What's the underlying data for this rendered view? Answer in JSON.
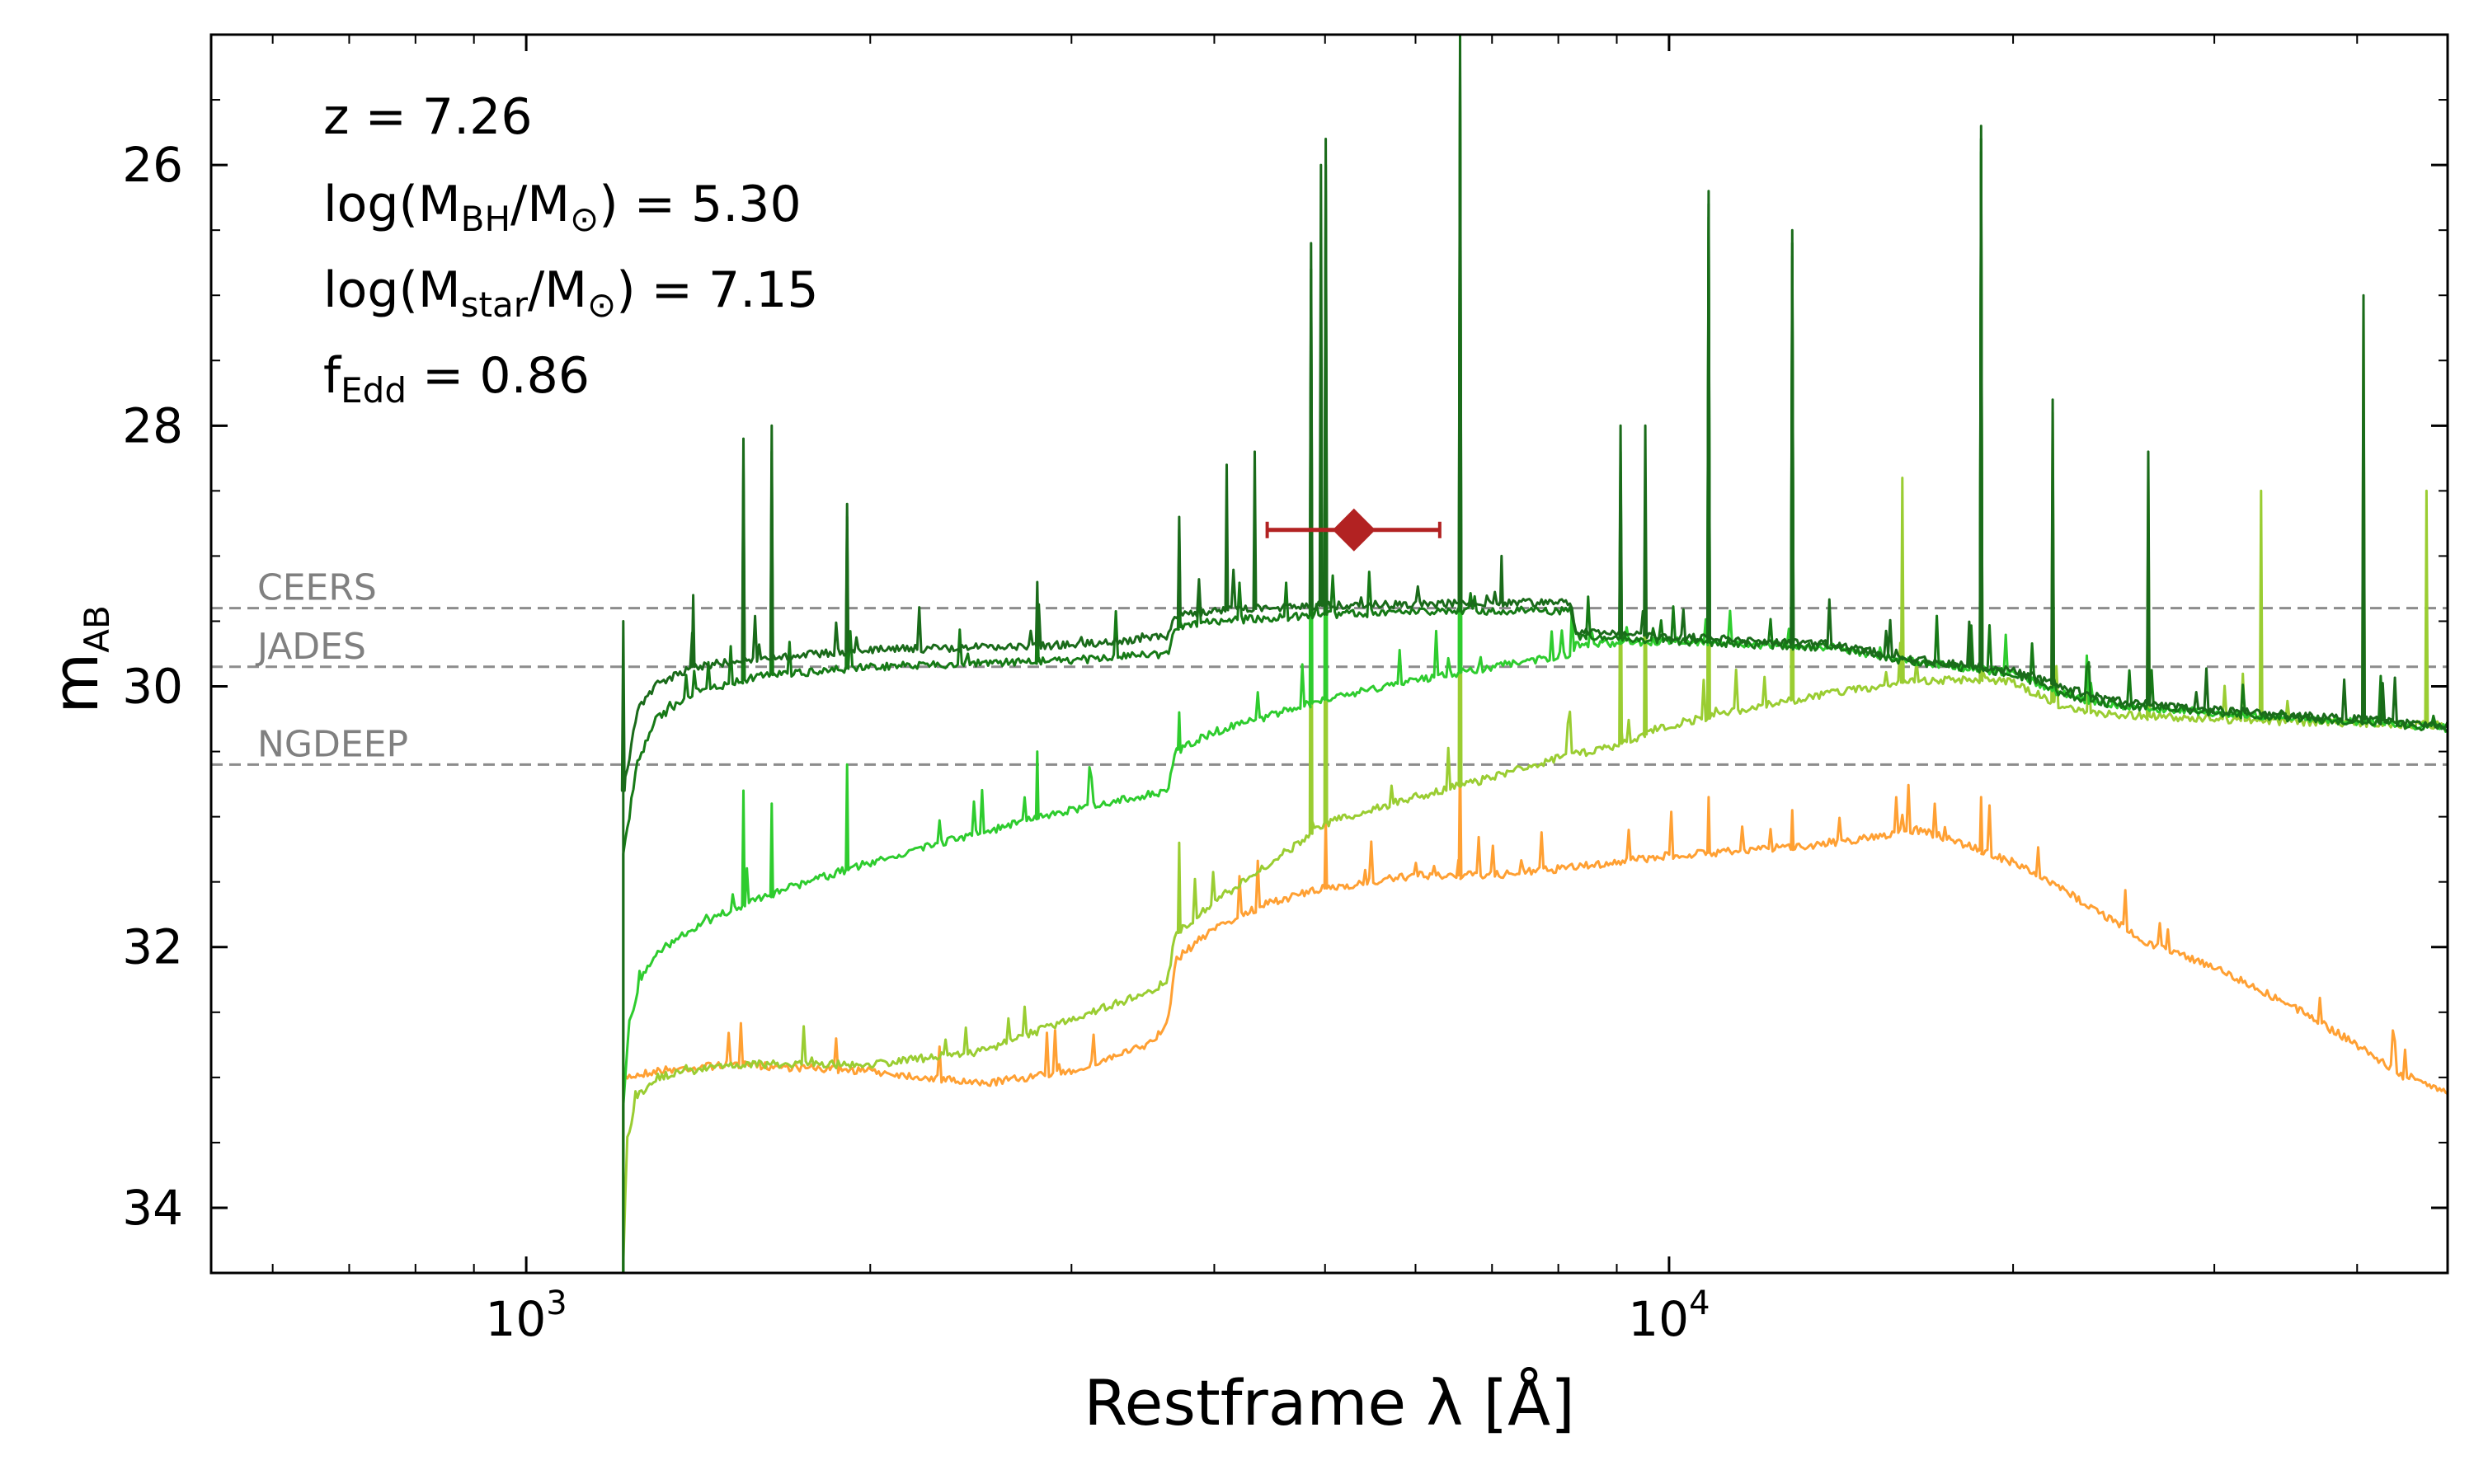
{
  "chart_data": {
    "type": "line",
    "title": "",
    "xlabel": "Restframe λ [Å]",
    "ylabel": "m",
    "ylabel_sub": "AB",
    "xscale": "log",
    "xlim": [
      530,
      48000
    ],
    "ylim": [
      34.5,
      25.0
    ],
    "y_inverted": true,
    "grid": false,
    "x_major_ticks": [
      {
        "value": 1000,
        "base": "10",
        "exp": "3"
      },
      {
        "value": 10000,
        "base": "10",
        "exp": "4"
      }
    ],
    "y_ticks": [
      26,
      28,
      30,
      32,
      34
    ],
    "y_tick_labels": [
      "26",
      "28",
      "30",
      "32",
      "34"
    ],
    "annotations": {
      "z": {
        "text": "z = 7.26"
      },
      "mbh": {
        "pre": "log(M",
        "sub1": "BH",
        "mid": "/M",
        "sub2": "⊙",
        "post": ") = 5.30"
      },
      "mstar": {
        "pre": "log(M",
        "sub1": "star",
        "mid": "/M",
        "sub2": "⊙",
        "post": ") = 7.15"
      },
      "fedd": {
        "pre": "f",
        "sub1": "Edd",
        "post": " = 0.86"
      }
    },
    "survey_limits": [
      {
        "name": "CEERS",
        "mag": 29.4,
        "color": "#8c8c8c"
      },
      {
        "name": "JADES",
        "mag": 29.85,
        "color": "#8c8c8c"
      },
      {
        "name": "NGDEEP",
        "mag": 30.6,
        "color": "#8c8c8c"
      }
    ],
    "observed_point": {
      "x": 5300,
      "y": 28.8,
      "x_err_low": 4450,
      "x_err_high": 6300,
      "color": "#b22222",
      "marker": "diamond"
    },
    "series": [
      {
        "name": "total-dark",
        "color": "#1a6b1a",
        "points": [
          [
            1216,
            30.8
          ],
          [
            1250,
            30.2
          ],
          [
            1300,
            29.98
          ],
          [
            1400,
            29.85
          ],
          [
            1600,
            29.78
          ],
          [
            2000,
            29.72
          ],
          [
            2500,
            29.7
          ],
          [
            3000,
            29.68
          ],
          [
            3640,
            29.62
          ],
          [
            3700,
            29.45
          ],
          [
            4000,
            29.42
          ],
          [
            5000,
            29.38
          ],
          [
            6000,
            29.37
          ],
          [
            7000,
            29.36
          ],
          [
            8200,
            29.36
          ],
          [
            8300,
            29.58
          ],
          [
            9000,
            29.6
          ],
          [
            10000,
            29.62
          ],
          [
            12000,
            29.65
          ],
          [
            14000,
            29.68
          ],
          [
            16000,
            29.78
          ],
          [
            20000,
            29.88
          ],
          [
            22000,
            30.0
          ],
          [
            23000,
            30.05
          ],
          [
            25000,
            30.12
          ],
          [
            30000,
            30.18
          ],
          [
            35000,
            30.22
          ],
          [
            40000,
            30.25
          ],
          [
            48000,
            30.3
          ]
        ],
        "lines": [
          [
            1216,
            29.5
          ],
          [
            1400,
            29.3
          ],
          [
            1549,
            28.1
          ],
          [
            1640,
            28.0
          ],
          [
            1909,
            28.6
          ],
          [
            2800,
            29.2
          ],
          [
            3727,
            28.7
          ],
          [
            4101,
            28.3
          ],
          [
            4340,
            28.2
          ],
          [
            4861,
            26.6
          ],
          [
            4959,
            26.0
          ],
          [
            5007,
            25.8
          ],
          [
            6563,
            25.0
          ],
          [
            7136,
            29.0
          ],
          [
            9069,
            28.0
          ],
          [
            9532,
            28.0
          ],
          [
            10830,
            26.2
          ],
          [
            12818,
            26.5
          ],
          [
            18751,
            25.7
          ],
          [
            21661,
            27.8
          ],
          [
            26260,
            28.2
          ],
          [
            40520,
            27.0
          ]
        ]
      },
      {
        "name": "total-mid",
        "color": "#167a16",
        "points": [
          [
            1216,
            31.3
          ],
          [
            1250,
            30.6
          ],
          [
            1300,
            30.25
          ],
          [
            1400,
            30.05
          ],
          [
            1600,
            29.92
          ],
          [
            2000,
            29.85
          ],
          [
            2500,
            29.82
          ],
          [
            3000,
            29.8
          ],
          [
            3640,
            29.75
          ],
          [
            3700,
            29.55
          ],
          [
            4000,
            29.5
          ],
          [
            5000,
            29.45
          ],
          [
            6000,
            29.43
          ],
          [
            7000,
            29.42
          ],
          [
            8200,
            29.42
          ],
          [
            8300,
            29.62
          ],
          [
            9000,
            29.63
          ],
          [
            10000,
            29.65
          ],
          [
            12000,
            29.68
          ],
          [
            14000,
            29.7
          ],
          [
            16000,
            29.8
          ],
          [
            20000,
            29.9
          ],
          [
            22000,
            30.05
          ],
          [
            23000,
            30.1
          ],
          [
            25000,
            30.15
          ],
          [
            30000,
            30.2
          ],
          [
            35000,
            30.24
          ],
          [
            40000,
            30.27
          ],
          [
            48000,
            30.32
          ]
        ],
        "lines": [
          [
            1549,
            28.3
          ],
          [
            1640,
            28.2
          ],
          [
            1909,
            28.7
          ],
          [
            2800,
            29.3
          ],
          [
            3727,
            28.8
          ],
          [
            4861,
            26.8
          ],
          [
            5007,
            26.0
          ],
          [
            6563,
            25.2
          ],
          [
            10830,
            26.3
          ],
          [
            12818,
            26.6
          ],
          [
            18751,
            25.8
          ]
        ]
      },
      {
        "name": "agn-component",
        "color": "#2ecc2e",
        "points": [
          [
            1216,
            33.2
          ],
          [
            1230,
            32.6
          ],
          [
            1260,
            32.25
          ],
          [
            1300,
            32.05
          ],
          [
            1400,
            31.85
          ],
          [
            1600,
            31.62
          ],
          [
            2000,
            31.35
          ],
          [
            2500,
            31.12
          ],
          [
            3000,
            30.95
          ],
          [
            3640,
            30.8
          ],
          [
            3700,
            30.5
          ],
          [
            4000,
            30.35
          ],
          [
            5000,
            30.1
          ],
          [
            6000,
            29.95
          ],
          [
            7000,
            29.85
          ],
          [
            8200,
            29.75
          ],
          [
            8300,
            29.68
          ],
          [
            10000,
            29.65
          ],
          [
            12000,
            29.68
          ],
          [
            14000,
            29.7
          ],
          [
            16000,
            29.8
          ],
          [
            20000,
            29.9
          ],
          [
            22000,
            30.05
          ],
          [
            23000,
            30.1
          ],
          [
            25000,
            30.15
          ],
          [
            30000,
            30.2
          ],
          [
            35000,
            30.24
          ],
          [
            40000,
            30.27
          ],
          [
            48000,
            30.32
          ]
        ],
        "lines": [
          [
            1549,
            30.8
          ],
          [
            1640,
            30.9
          ],
          [
            1909,
            30.6
          ],
          [
            2800,
            30.5
          ],
          [
            3727,
            30.2
          ],
          [
            4861,
            27.0
          ],
          [
            5007,
            26.2
          ],
          [
            6563,
            25.3
          ],
          [
            9069,
            28.2
          ],
          [
            10830,
            26.4
          ],
          [
            12818,
            26.7
          ],
          [
            18751,
            25.9
          ]
        ]
      },
      {
        "name": "stellar-nebular",
        "color": "#9acd32",
        "points": [
          [
            1216,
            34.4
          ],
          [
            1225,
            33.5
          ],
          [
            1250,
            33.15
          ],
          [
            1300,
            33.0
          ],
          [
            1500,
            32.9
          ],
          [
            2000,
            32.9
          ],
          [
            2500,
            32.8
          ],
          [
            3000,
            32.55
          ],
          [
            3500,
            32.35
          ],
          [
            3640,
            32.25
          ],
          [
            3700,
            31.9
          ],
          [
            4000,
            31.65
          ],
          [
            4500,
            31.35
          ],
          [
            5000,
            31.05
          ],
          [
            6000,
            30.85
          ],
          [
            7000,
            30.7
          ],
          [
            8000,
            30.55
          ],
          [
            9000,
            30.45
          ],
          [
            10000,
            30.3
          ],
          [
            12000,
            30.15
          ],
          [
            14000,
            30.05
          ],
          [
            16000,
            29.97
          ],
          [
            18000,
            29.95
          ],
          [
            20000,
            29.97
          ],
          [
            22000,
            30.15
          ],
          [
            23000,
            30.2
          ],
          [
            25000,
            30.22
          ],
          [
            30000,
            30.25
          ],
          [
            35000,
            30.27
          ],
          [
            40000,
            30.28
          ],
          [
            48000,
            30.3
          ]
        ],
        "lines": [
          [
            3727,
            31.2
          ],
          [
            4861,
            27.2
          ],
          [
            5007,
            26.4
          ],
          [
            6563,
            25.4
          ],
          [
            9069,
            28.3
          ],
          [
            9532,
            28.4
          ],
          [
            10830,
            26.5
          ],
          [
            12818,
            26.8
          ],
          [
            16000,
            28.4
          ],
          [
            18751,
            26.0
          ],
          [
            21661,
            27.9
          ],
          [
            26260,
            28.4
          ],
          [
            32960,
            28.5
          ],
          [
            40520,
            27.1
          ],
          [
            46000,
            28.5
          ]
        ]
      },
      {
        "name": "stellar-continuum",
        "color": "#ffa033",
        "points": [
          [
            1216,
            33.0
          ],
          [
            1300,
            32.95
          ],
          [
            1500,
            32.9
          ],
          [
            2000,
            32.95
          ],
          [
            2500,
            33.05
          ],
          [
            3000,
            32.95
          ],
          [
            3500,
            32.75
          ],
          [
            3640,
            32.6
          ],
          [
            3700,
            32.1
          ],
          [
            4000,
            31.85
          ],
          [
            4500,
            31.65
          ],
          [
            5000,
            31.55
          ],
          [
            6000,
            31.45
          ],
          [
            7000,
            31.45
          ],
          [
            8000,
            31.4
          ],
          [
            9000,
            31.35
          ],
          [
            10000,
            31.3
          ],
          [
            12000,
            31.25
          ],
          [
            14000,
            31.2
          ],
          [
            16500,
            31.1
          ],
          [
            18000,
            31.2
          ],
          [
            20000,
            31.35
          ],
          [
            22000,
            31.55
          ],
          [
            24000,
            31.75
          ],
          [
            26000,
            31.95
          ],
          [
            30000,
            32.15
          ],
          [
            35000,
            32.45
          ],
          [
            40000,
            32.75
          ],
          [
            44000,
            33.0
          ],
          [
            48000,
            33.1
          ]
        ],
        "lines": [
          [
            5007,
            31.0
          ],
          [
            6563,
            30.5
          ],
          [
            10830,
            30.85
          ],
          [
            12818,
            30.95
          ],
          [
            18751,
            30.85
          ]
        ]
      }
    ]
  }
}
